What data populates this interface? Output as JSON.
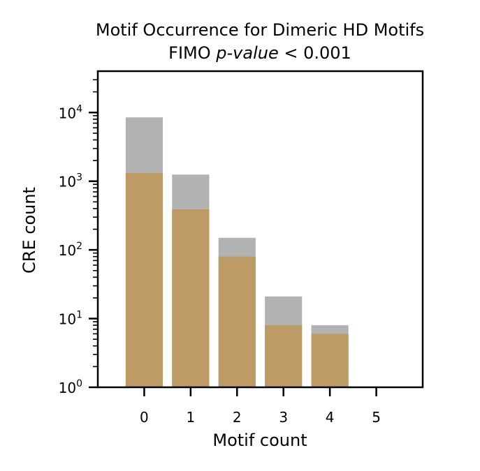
{
  "chart_data": {
    "type": "bar",
    "title": "Motif Occurrence for Dimeric HD Motifs",
    "subtitle_prefix": "FIMO",
    "subtitle_italic": "p-value",
    "subtitle_suffix": "< 0.001",
    "xlabel": "Motif count",
    "ylabel": "CRE count",
    "categories": [
      "0",
      "1",
      "2",
      "3",
      "4",
      "5"
    ],
    "y_scale": "log",
    "ylim": [
      1,
      40000
    ],
    "xlim": [
      -1,
      6
    ],
    "y_ticks": [
      1,
      10,
      100,
      1000,
      10000
    ],
    "y_tick_labels": [
      {
        "base": "10",
        "exp": "0"
      },
      {
        "base": "10",
        "exp": "1"
      },
      {
        "base": "10",
        "exp": "2"
      },
      {
        "base": "10",
        "exp": "3"
      },
      {
        "base": "10",
        "exp": "4"
      }
    ],
    "grid": false,
    "series": [
      {
        "color": "#b2b2b2",
        "values": [
          8500,
          1250,
          150,
          21,
          8,
          0
        ]
      },
      {
        "color": "#bc9b65",
        "values": [
          1320,
          390,
          80,
          8,
          6,
          0
        ]
      }
    ]
  }
}
